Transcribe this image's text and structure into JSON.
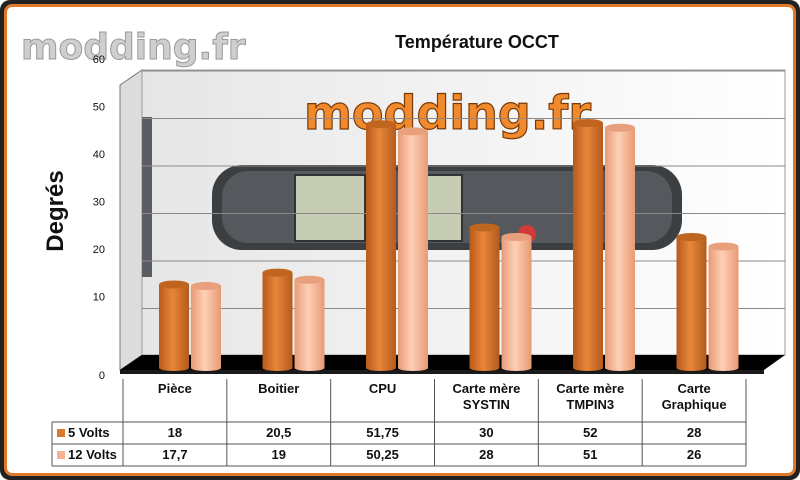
{
  "watermark": {
    "corner_text": "modding.fr",
    "center_text": "modding.fr"
  },
  "colors": {
    "series_5v": "#d9782f",
    "series_12v": "#f5b391",
    "frame_accent": "#e07a2a",
    "floor": "#000000"
  },
  "chart_data": {
    "type": "bar",
    "title": "Température OCCT",
    "ylabel": "Degrés",
    "xlabel": "",
    "ylim": [
      0,
      60
    ],
    "yticks": [
      0,
      10,
      20,
      30,
      40,
      50,
      60
    ],
    "categories": [
      [
        "Pièce"
      ],
      [
        "Boitier"
      ],
      [
        "CPU"
      ],
      [
        "Carte mère",
        "SYSTIN"
      ],
      [
        "Carte mère",
        "TMPIN3"
      ],
      [
        "Carte",
        "Graphique"
      ]
    ],
    "series": [
      {
        "name": "5 Volts",
        "values": [
          18,
          20.5,
          51.75,
          30,
          52,
          28
        ],
        "labels": [
          "18",
          "20,5",
          "51,75",
          "30",
          "52",
          "28"
        ]
      },
      {
        "name": "12 Volts",
        "values": [
          17.7,
          19,
          50.25,
          28,
          51,
          26
        ],
        "labels": [
          "17,7",
          "19",
          "50,25",
          "28",
          "51",
          "26"
        ]
      }
    ],
    "legend": "data-table",
    "grid": true
  }
}
